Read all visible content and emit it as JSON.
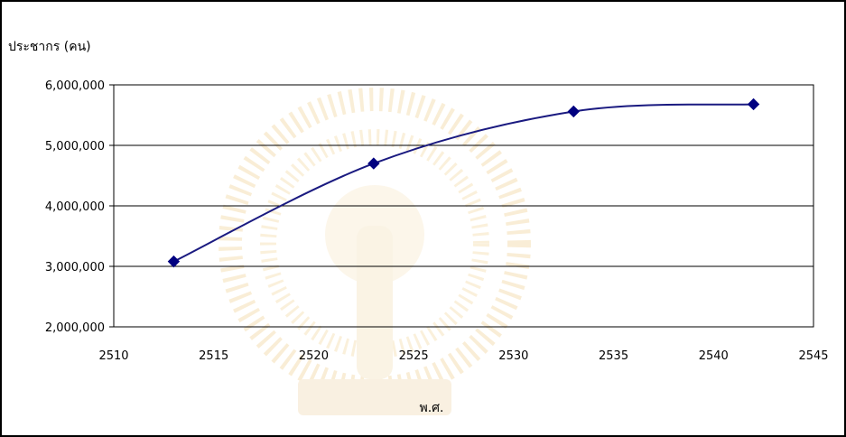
{
  "chart_data": {
    "type": "line",
    "ylabel": "ประชากร (คน)",
    "xlabel": "พ.ศ.",
    "x": [
      2513,
      2523,
      2533,
      2542
    ],
    "series": [
      {
        "values": [
          3080000,
          4700000,
          5560000,
          5680000
        ]
      }
    ],
    "xlim": [
      2510,
      2545
    ],
    "ylim": [
      2000000,
      6000000
    ],
    "xticks": [
      2510,
      2515,
      2520,
      2525,
      2530,
      2535,
      2540,
      2545
    ],
    "xtick_labels": [
      "2510",
      "2515",
      "2520",
      "2525",
      "2530",
      "2535",
      "2540",
      "2545"
    ],
    "yticks": [
      2000000,
      3000000,
      4000000,
      5000000,
      6000000
    ],
    "ytick_labels": [
      "2,000,000",
      "3,000,000",
      "4,000,000",
      "5,000,000",
      "6,000,000"
    ],
    "grid": "horizontal",
    "legend": "none",
    "line_color": "#1a1a80",
    "marker_color": "#000080",
    "marker": "diamond"
  }
}
